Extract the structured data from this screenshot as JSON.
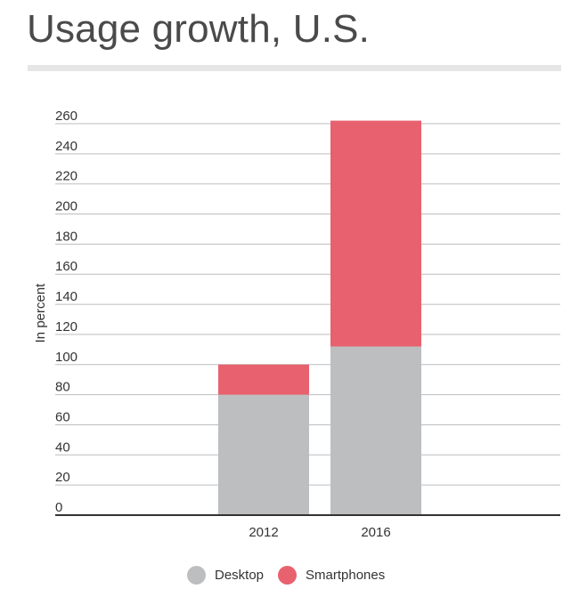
{
  "title": "Usage growth, U.S.",
  "legend": [
    {
      "label": "Desktop",
      "color": "#bcbec0"
    },
    {
      "label": "Smartphones",
      "color": "#e8616e"
    }
  ],
  "chart_data": {
    "type": "bar",
    "stacked": true,
    "title": "Usage growth, U.S.",
    "xlabel": "",
    "ylabel": "In percent",
    "categories": [
      "2012",
      "2016"
    ],
    "series": [
      {
        "name": "Desktop",
        "values": [
          80,
          112
        ],
        "color": "#bcbec0"
      },
      {
        "name": "Smartphones",
        "values": [
          20,
          150
        ],
        "color": "#e8616e"
      }
    ],
    "ylim": [
      0,
      260
    ],
    "yticks": [
      0,
      20,
      40,
      60,
      80,
      100,
      120,
      140,
      160,
      180,
      200,
      220,
      240,
      260
    ],
    "grid": true,
    "legend_position": "bottom"
  }
}
